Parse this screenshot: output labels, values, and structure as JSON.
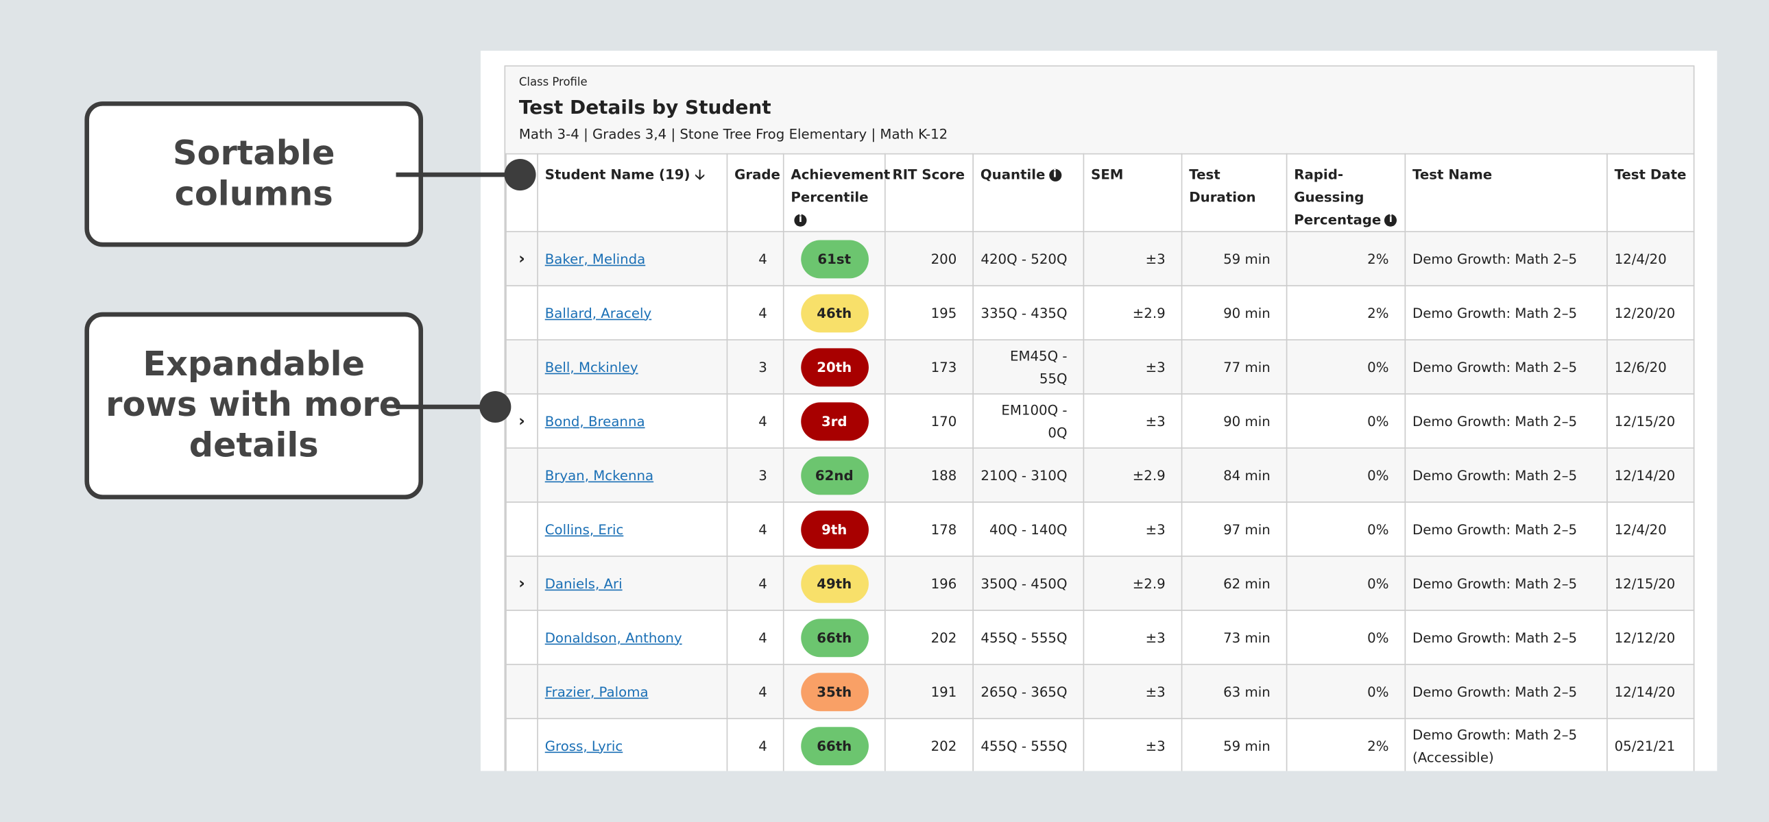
{
  "callouts": [
    "Sortable columns",
    "Expandable rows with more details"
  ],
  "header": {
    "caption": "Class Profile",
    "title": "Test Details by Student",
    "subtitle": "Math 3-4 | Grades 3,4 | Stone Tree Frog Elementary | Math K-12"
  },
  "table": {
    "columns": [
      "Student Name (19)",
      "Grade",
      "Achievement Percentile",
      "RIT Score",
      "Quantile",
      "SEM",
      "Test Duration",
      "Rapid-Guessing Percentage",
      "Test Name",
      "Test Date"
    ],
    "info_columns": [
      2,
      4,
      7
    ],
    "sorted_column": 0,
    "rows": [
      {
        "expandable": true,
        "cells": [
          "Baker, Melinda",
          4,
          "61st",
          200,
          "420Q - 520Q",
          "±3",
          "59 min",
          "2%",
          "Demo Growth: Math 2–5",
          "12/4/20"
        ],
        "badge_color": "#6cc56f"
      },
      {
        "expandable": false,
        "cells": [
          "Ballard, Aracely",
          4,
          "46th",
          195,
          "335Q - 435Q",
          "±2.9",
          "90 min",
          "2%",
          "Demo Growth: Math 2–5",
          "12/20/20"
        ],
        "badge_color": "#f8e06a"
      },
      {
        "expandable": false,
        "cells": [
          "Bell, Mckinley",
          3,
          "20th",
          173,
          "EM45Q - 55Q",
          "±3",
          "77 min",
          "0%",
          "Demo Growth: Math 2–5",
          "12/6/20"
        ],
        "badge_color": "#a80000"
      },
      {
        "expandable": true,
        "cells": [
          "Bond, Breanna",
          4,
          "3rd",
          170,
          "EM100Q - 0Q",
          "±3",
          "90 min",
          "0%",
          "Demo Growth: Math 2–5",
          "12/15/20"
        ],
        "badge_color": "#a80000"
      },
      {
        "expandable": false,
        "cells": [
          "Bryan, Mckenna",
          3,
          "62nd",
          188,
          "210Q - 310Q",
          "±2.9",
          "84 min",
          "0%",
          "Demo Growth: Math 2–5",
          "12/14/20"
        ],
        "badge_color": "#6cc56f"
      },
      {
        "expandable": false,
        "cells": [
          "Collins, Eric",
          4,
          "9th",
          178,
          "40Q - 140Q",
          "±3",
          "97 min",
          "0%",
          "Demo Growth: Math 2–5",
          "12/4/20"
        ],
        "badge_color": "#a80000"
      },
      {
        "expandable": true,
        "cells": [
          "Daniels, Ari",
          4,
          "49th",
          196,
          "350Q - 450Q",
          "±2.9",
          "62 min",
          "0%",
          "Demo Growth: Math 2–5",
          "12/15/20"
        ],
        "badge_color": "#f8e06a"
      },
      {
        "expandable": false,
        "cells": [
          "Donaldson, Anthony",
          4,
          "66th",
          202,
          "455Q - 555Q",
          "±3",
          "73 min",
          "0%",
          "Demo Growth: Math 2–5",
          "12/12/20"
        ],
        "badge_color": "#6cc56f"
      },
      {
        "expandable": false,
        "cells": [
          "Frazier, Paloma",
          4,
          "35th",
          191,
          "265Q - 365Q",
          "±3",
          "63 min",
          "0%",
          "Demo Growth: Math 2–5",
          "12/14/20"
        ],
        "badge_color": "#f9a066"
      },
      {
        "expandable": false,
        "cells": [
          "Gross, Lyric",
          4,
          "66th",
          202,
          "455Q - 555Q",
          "±3",
          "59 min",
          "2%",
          "Demo Growth: Math 2–5 (Accessible)",
          "05/21/21"
        ],
        "badge_color": "#6cc56f"
      }
    ]
  }
}
